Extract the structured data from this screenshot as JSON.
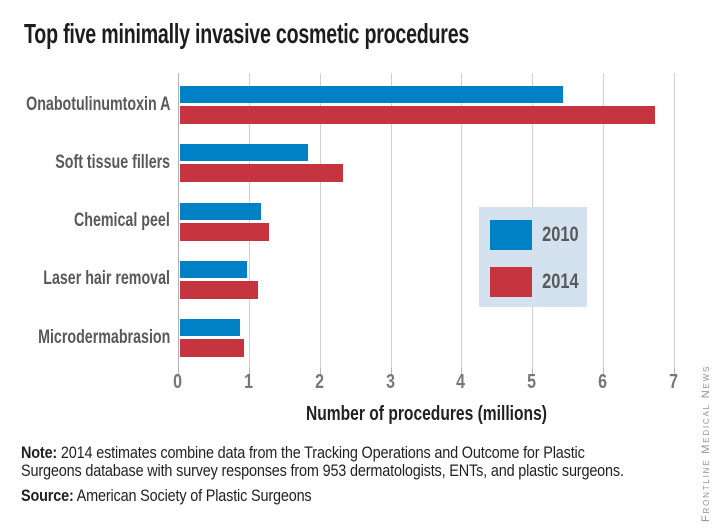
{
  "title": "Top five minimally invasive cosmetic procedures",
  "chart_data": {
    "type": "bar",
    "orientation": "horizontal",
    "title": "Top five minimally invasive cosmetic procedures",
    "categories": [
      "Onabotulinumtoxin A",
      "Soft tissue fillers",
      "Chemical peel",
      "Laser hair removal",
      "Microdermabrasion"
    ],
    "series": [
      {
        "name": "2010",
        "color": "#0081c5",
        "values": [
          5.4,
          1.8,
          1.15,
          0.95,
          0.85
        ]
      },
      {
        "name": "2014",
        "color": "#c5343f",
        "values": [
          6.7,
          2.3,
          1.25,
          1.1,
          0.9
        ]
      }
    ],
    "xlabel": "Number of procedures (millions)",
    "ylabel": "",
    "xlim": [
      0,
      7
    ],
    "xticks": [
      "0",
      "1",
      "2",
      "3",
      "4",
      "5",
      "6",
      "7"
    ],
    "grid": true,
    "legend_position": "center-right"
  },
  "legend": {
    "background": "#d4e2f0",
    "items": [
      {
        "label": "2010",
        "color": "#0081c5"
      },
      {
        "label": "2014",
        "color": "#c5343f"
      }
    ]
  },
  "xaxis": {
    "label": "Number of procedures (millions)"
  },
  "footnote": {
    "note_label": "Note:",
    "note_line1": " 2014 estimates combine data from the Tracking Operations and Outcome for Plastic",
    "note_line2": "Surgeons database with survey responses from 953 dermatologists, ENTs, and plastic surgeons.",
    "source_label": "Source:",
    "source_text": " American Society of Plastic Surgeons"
  },
  "side_credit": "Frontline Medical News",
  "colors": {
    "bar_2010": "#0081c5",
    "bar_2014": "#c5343f",
    "legend_background": "#d4e2f0",
    "gridline": "#cdcfd0",
    "tick_label": "#76777a",
    "category_label": "#58595b",
    "text": "#231f20",
    "side_credit": "#8f9194"
  }
}
